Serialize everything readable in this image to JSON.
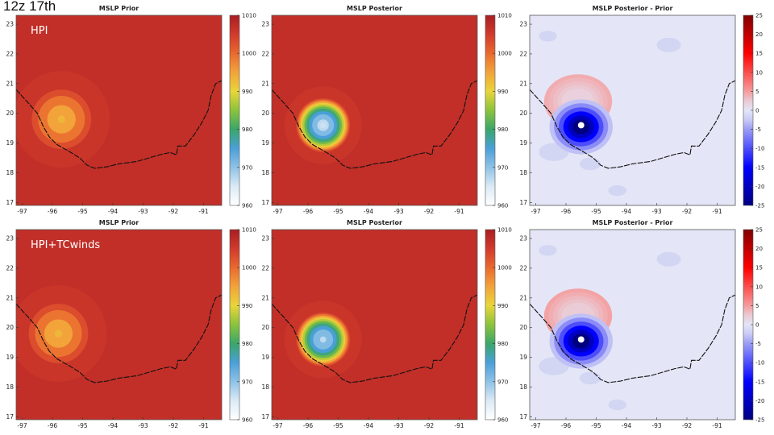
{
  "slide": {
    "title": "12z 17th"
  },
  "colors": {
    "land": "#c62b2b",
    "coast": "#111111",
    "diverging_neg": "#0000b4",
    "diverging_pos": "#b40000"
  },
  "chart_data": [
    {
      "id": "prior-hpi",
      "type": "heatmap",
      "title": "MSLP Prior",
      "annotation": "HPI",
      "xlim": [
        -97.2,
        -90.4
      ],
      "ylim": [
        16.9,
        23.3
      ],
      "x_ticks": [
        -97,
        -96,
        -95,
        -94,
        -93,
        -92,
        -91
      ],
      "y_ticks": [
        17,
        18,
        19,
        20,
        21,
        22,
        23
      ],
      "colorbar": {
        "type": "pressure",
        "min": 960,
        "max": 1010,
        "ticks": [
          1010,
          1000,
          990,
          980,
          970,
          960
        ]
      },
      "field": {
        "background": 1007,
        "low_center": [
          -95.7,
          19.8
        ],
        "low_min": 993,
        "low_radius_deg": 0.5
      }
    },
    {
      "id": "posterior-hpi",
      "type": "heatmap",
      "title": "MSLP Posterior",
      "xlim": [
        -97.2,
        -90.4
      ],
      "ylim": [
        16.9,
        23.3
      ],
      "x_ticks": [
        -97,
        -96,
        -95,
        -94,
        -93,
        -92,
        -91
      ],
      "y_ticks": [
        17,
        18,
        19,
        20,
        21,
        22,
        23
      ],
      "colorbar": {
        "type": "pressure",
        "min": 960,
        "max": 1010,
        "ticks": [
          1010,
          1000,
          990,
          980,
          970,
          960
        ]
      },
      "field": {
        "background": 1007,
        "low_center": [
          -95.5,
          19.6
        ],
        "low_min": 966,
        "low_radius_deg": 0.4
      }
    },
    {
      "id": "diff-hpi",
      "type": "heatmap",
      "title": "MSLP Posterior - Prior",
      "xlim": [
        -97.2,
        -90.4
      ],
      "ylim": [
        16.9,
        23.3
      ],
      "x_ticks": [
        -97,
        -96,
        -95,
        -94,
        -93,
        -92,
        -91
      ],
      "y_ticks": [
        17,
        18,
        19,
        20,
        21,
        22,
        23
      ],
      "colorbar": {
        "type": "diverging",
        "min": -25,
        "max": 25,
        "ticks": [
          25,
          20,
          15,
          10,
          5,
          0,
          -5,
          -10,
          -15,
          -20,
          -25
        ]
      },
      "field": {
        "neg_center": [
          -95.5,
          19.6
        ],
        "neg_min": -27,
        "neg_radius_deg": 0.35,
        "pos_center": [
          -95.6,
          20.4
        ],
        "pos_max": 6,
        "pos_radius_deg": 0.9
      }
    },
    {
      "id": "prior-tcwinds",
      "type": "heatmap",
      "title": "MSLP Prior",
      "annotation": "HPI+TCwinds",
      "xlim": [
        -97.2,
        -90.4
      ],
      "ylim": [
        16.9,
        23.3
      ],
      "x_ticks": [
        -97,
        -96,
        -95,
        -94,
        -93,
        -92,
        -91
      ],
      "y_ticks": [
        17,
        18,
        19,
        20,
        21,
        22,
        23
      ],
      "colorbar": {
        "type": "pressure",
        "min": 960,
        "max": 1010,
        "ticks": [
          1010,
          1000,
          990,
          980,
          970,
          960
        ]
      },
      "field": {
        "background": 1007,
        "low_center": [
          -95.8,
          19.8
        ],
        "low_min": 993,
        "low_radius_deg": 0.5
      }
    },
    {
      "id": "posterior-tcwinds",
      "type": "heatmap",
      "title": "MSLP Posterior",
      "xlim": [
        -97.2,
        -90.4
      ],
      "ylim": [
        16.9,
        23.3
      ],
      "x_ticks": [
        -97,
        -96,
        -95,
        -94,
        -93,
        -92,
        -91
      ],
      "y_ticks": [
        17,
        18,
        19,
        20,
        21,
        22,
        23
      ],
      "colorbar": {
        "type": "pressure",
        "min": 960,
        "max": 1010,
        "ticks": [
          1010,
          1000,
          990,
          980,
          970,
          960
        ]
      },
      "field": {
        "background": 1007,
        "low_center": [
          -95.5,
          19.6
        ],
        "low_min": 967,
        "low_radius_deg": 0.4
      }
    },
    {
      "id": "diff-tcwinds",
      "type": "heatmap",
      "title": "MSLP Posterior - Prior",
      "xlim": [
        -97.2,
        -90.4
      ],
      "ylim": [
        16.9,
        23.3
      ],
      "x_ticks": [
        -97,
        -96,
        -95,
        -94,
        -93,
        -92,
        -91
      ],
      "y_ticks": [
        17,
        18,
        19,
        20,
        21,
        22,
        23
      ],
      "colorbar": {
        "type": "diverging",
        "min": -25,
        "max": 25,
        "ticks": [
          25,
          20,
          15,
          10,
          5,
          0,
          -5,
          -10,
          -15,
          -20,
          -25
        ]
      },
      "field": {
        "neg_center": [
          -95.5,
          19.6
        ],
        "neg_min": -27,
        "neg_radius_deg": 0.35,
        "pos_center": [
          -95.6,
          20.4
        ],
        "pos_max": 7,
        "pos_radius_deg": 0.9
      }
    }
  ],
  "coastline": [
    [
      -97.2,
      20.8
    ],
    [
      -96.8,
      20.35
    ],
    [
      -96.5,
      20.0
    ],
    [
      -96.3,
      19.55
    ],
    [
      -96.1,
      19.2
    ],
    [
      -95.85,
      18.95
    ],
    [
      -95.45,
      18.72
    ],
    [
      -95.1,
      18.5
    ],
    [
      -94.85,
      18.25
    ],
    [
      -94.6,
      18.15
    ],
    [
      -94.2,
      18.2
    ],
    [
      -93.8,
      18.3
    ],
    [
      -93.2,
      18.38
    ],
    [
      -92.8,
      18.5
    ],
    [
      -92.4,
      18.62
    ],
    [
      -92.1,
      18.68
    ],
    [
      -91.9,
      18.6
    ],
    [
      -91.85,
      18.9
    ],
    [
      -91.6,
      18.9
    ],
    [
      -91.3,
      19.3
    ],
    [
      -91.05,
      19.7
    ],
    [
      -90.85,
      20.1
    ],
    [
      -90.75,
      20.6
    ],
    [
      -90.6,
      21.0
    ],
    [
      -90.4,
      21.1
    ]
  ]
}
